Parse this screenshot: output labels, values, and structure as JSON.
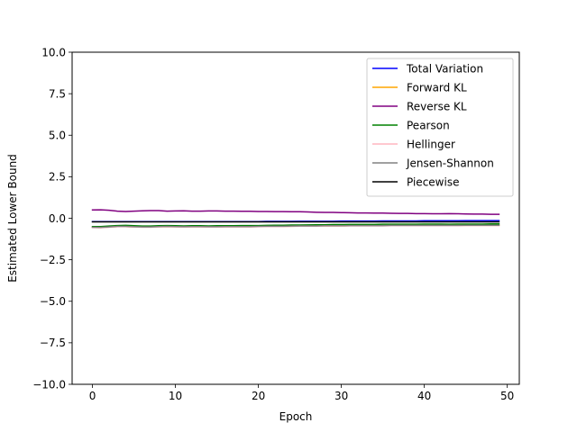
{
  "chart_data": {
    "type": "line",
    "title": "",
    "xlabel": "Epoch",
    "ylabel": "Estimated Lower Bound",
    "xlim": [
      -2.45,
      51.45
    ],
    "ylim": [
      -10.0,
      10.0
    ],
    "xticks": [
      0,
      10,
      20,
      30,
      40,
      50
    ],
    "yticks": [
      -10.0,
      -7.5,
      -5.0,
      -2.5,
      0.0,
      2.5,
      5.0,
      7.5,
      10.0
    ],
    "xtick_labels": [
      "0",
      "10",
      "20",
      "30",
      "40",
      "50"
    ],
    "ytick_labels": [
      "−10.0",
      "−7.5",
      "−5.0",
      "−2.5",
      "0.0",
      "2.5",
      "5.0",
      "7.5",
      "10.0"
    ],
    "grid": false,
    "legend_position": "top-right",
    "x": [
      0,
      1,
      2,
      3,
      4,
      5,
      6,
      7,
      8,
      9,
      10,
      11,
      12,
      13,
      14,
      15,
      16,
      17,
      18,
      19,
      20,
      21,
      22,
      23,
      24,
      25,
      26,
      27,
      28,
      29,
      30,
      31,
      32,
      33,
      34,
      35,
      36,
      37,
      38,
      39,
      40,
      41,
      42,
      43,
      44,
      45,
      46,
      47,
      48,
      49
    ],
    "series": [
      {
        "name": "Total Variation",
        "color": "#0000ff",
        "values": [
          -0.2,
          -0.2,
          -0.2,
          -0.2,
          -0.2,
          -0.2,
          -0.2,
          -0.2,
          -0.2,
          -0.2,
          -0.2,
          -0.2,
          -0.2,
          -0.2,
          -0.2,
          -0.2,
          -0.2,
          -0.2,
          -0.2,
          -0.2,
          -0.2,
          -0.19,
          -0.19,
          -0.19,
          -0.19,
          -0.18,
          -0.18,
          -0.18,
          -0.18,
          -0.18,
          -0.17,
          -0.17,
          -0.17,
          -0.17,
          -0.17,
          -0.16,
          -0.16,
          -0.16,
          -0.16,
          -0.16,
          -0.15,
          -0.15,
          -0.15,
          -0.15,
          -0.15,
          -0.14,
          -0.14,
          -0.14,
          -0.14,
          -0.14
        ]
      },
      {
        "name": "Forward KL",
        "color": "#ffa500",
        "values": [
          -0.55,
          -0.56,
          -0.53,
          -0.5,
          -0.5,
          -0.52,
          -0.53,
          -0.53,
          -0.51,
          -0.5,
          -0.51,
          -0.52,
          -0.51,
          -0.51,
          -0.52,
          -0.52,
          -0.51,
          -0.51,
          -0.51,
          -0.51,
          -0.5,
          -0.49,
          -0.49,
          -0.49,
          -0.48,
          -0.47,
          -0.47,
          -0.47,
          -0.46,
          -0.46,
          -0.46,
          -0.45,
          -0.45,
          -0.45,
          -0.45,
          -0.45,
          -0.44,
          -0.44,
          -0.44,
          -0.44,
          -0.44,
          -0.44,
          -0.43,
          -0.44,
          -0.44,
          -0.43,
          -0.43,
          -0.43,
          -0.43,
          -0.43
        ]
      },
      {
        "name": "Reverse KL",
        "color": "#800080",
        "values": [
          0.5,
          0.51,
          0.48,
          0.43,
          0.41,
          0.43,
          0.45,
          0.46,
          0.46,
          0.43,
          0.44,
          0.45,
          0.43,
          0.43,
          0.44,
          0.44,
          0.43,
          0.43,
          0.42,
          0.42,
          0.41,
          0.41,
          0.4,
          0.4,
          0.39,
          0.39,
          0.38,
          0.36,
          0.35,
          0.35,
          0.34,
          0.33,
          0.32,
          0.32,
          0.31,
          0.31,
          0.3,
          0.29,
          0.29,
          0.28,
          0.28,
          0.27,
          0.27,
          0.28,
          0.27,
          0.26,
          0.25,
          0.25,
          0.24,
          0.24
        ]
      },
      {
        "name": "Pearson",
        "color": "#008000",
        "values": [
          -0.5,
          -0.5,
          -0.47,
          -0.44,
          -0.43,
          -0.45,
          -0.47,
          -0.47,
          -0.45,
          -0.44,
          -0.45,
          -0.46,
          -0.45,
          -0.45,
          -0.46,
          -0.45,
          -0.45,
          -0.45,
          -0.44,
          -0.44,
          -0.44,
          -0.43,
          -0.42,
          -0.42,
          -0.41,
          -0.41,
          -0.4,
          -0.39,
          -0.39,
          -0.38,
          -0.38,
          -0.37,
          -0.37,
          -0.37,
          -0.37,
          -0.36,
          -0.36,
          -0.36,
          -0.36,
          -0.36,
          -0.35,
          -0.35,
          -0.35,
          -0.36,
          -0.35,
          -0.35,
          -0.35,
          -0.35,
          -0.34,
          -0.34
        ]
      },
      {
        "name": "Hellinger",
        "color": "#ffb6c1",
        "values": [
          -0.56,
          -0.57,
          -0.54,
          -0.51,
          -0.51,
          -0.53,
          -0.54,
          -0.54,
          -0.52,
          -0.51,
          -0.52,
          -0.53,
          -0.52,
          -0.52,
          -0.53,
          -0.53,
          -0.52,
          -0.52,
          -0.52,
          -0.52,
          -0.51,
          -0.5,
          -0.5,
          -0.5,
          -0.49,
          -0.48,
          -0.48,
          -0.48,
          -0.47,
          -0.47,
          -0.47,
          -0.46,
          -0.46,
          -0.46,
          -0.46,
          -0.46,
          -0.45,
          -0.45,
          -0.45,
          -0.45,
          -0.45,
          -0.45,
          -0.44,
          -0.45,
          -0.45,
          -0.44,
          -0.44,
          -0.44,
          -0.44,
          -0.44
        ]
      },
      {
        "name": "Jensen-Shannon",
        "color": "#808080",
        "values": [
          -0.54,
          -0.55,
          -0.52,
          -0.49,
          -0.49,
          -0.51,
          -0.52,
          -0.52,
          -0.5,
          -0.49,
          -0.5,
          -0.51,
          -0.5,
          -0.5,
          -0.51,
          -0.51,
          -0.5,
          -0.5,
          -0.5,
          -0.5,
          -0.49,
          -0.48,
          -0.48,
          -0.48,
          -0.47,
          -0.46,
          -0.46,
          -0.46,
          -0.45,
          -0.45,
          -0.45,
          -0.44,
          -0.44,
          -0.44,
          -0.44,
          -0.44,
          -0.43,
          -0.43,
          -0.43,
          -0.43,
          -0.43,
          -0.43,
          -0.42,
          -0.43,
          -0.43,
          -0.42,
          -0.42,
          -0.42,
          -0.42,
          -0.42
        ]
      },
      {
        "name": "Piecewise",
        "color": "#000000",
        "values": [
          -0.22,
          -0.22,
          -0.22,
          -0.22,
          -0.22,
          -0.22,
          -0.22,
          -0.22,
          -0.22,
          -0.22,
          -0.22,
          -0.22,
          -0.22,
          -0.22,
          -0.22,
          -0.22,
          -0.22,
          -0.22,
          -0.22,
          -0.22,
          -0.22,
          -0.22,
          -0.22,
          -0.22,
          -0.22,
          -0.22,
          -0.22,
          -0.22,
          -0.22,
          -0.22,
          -0.22,
          -0.22,
          -0.22,
          -0.22,
          -0.22,
          -0.22,
          -0.22,
          -0.22,
          -0.22,
          -0.22,
          -0.22,
          -0.22,
          -0.22,
          -0.22,
          -0.22,
          -0.22,
          -0.22,
          -0.22,
          -0.22,
          -0.22
        ]
      }
    ]
  }
}
